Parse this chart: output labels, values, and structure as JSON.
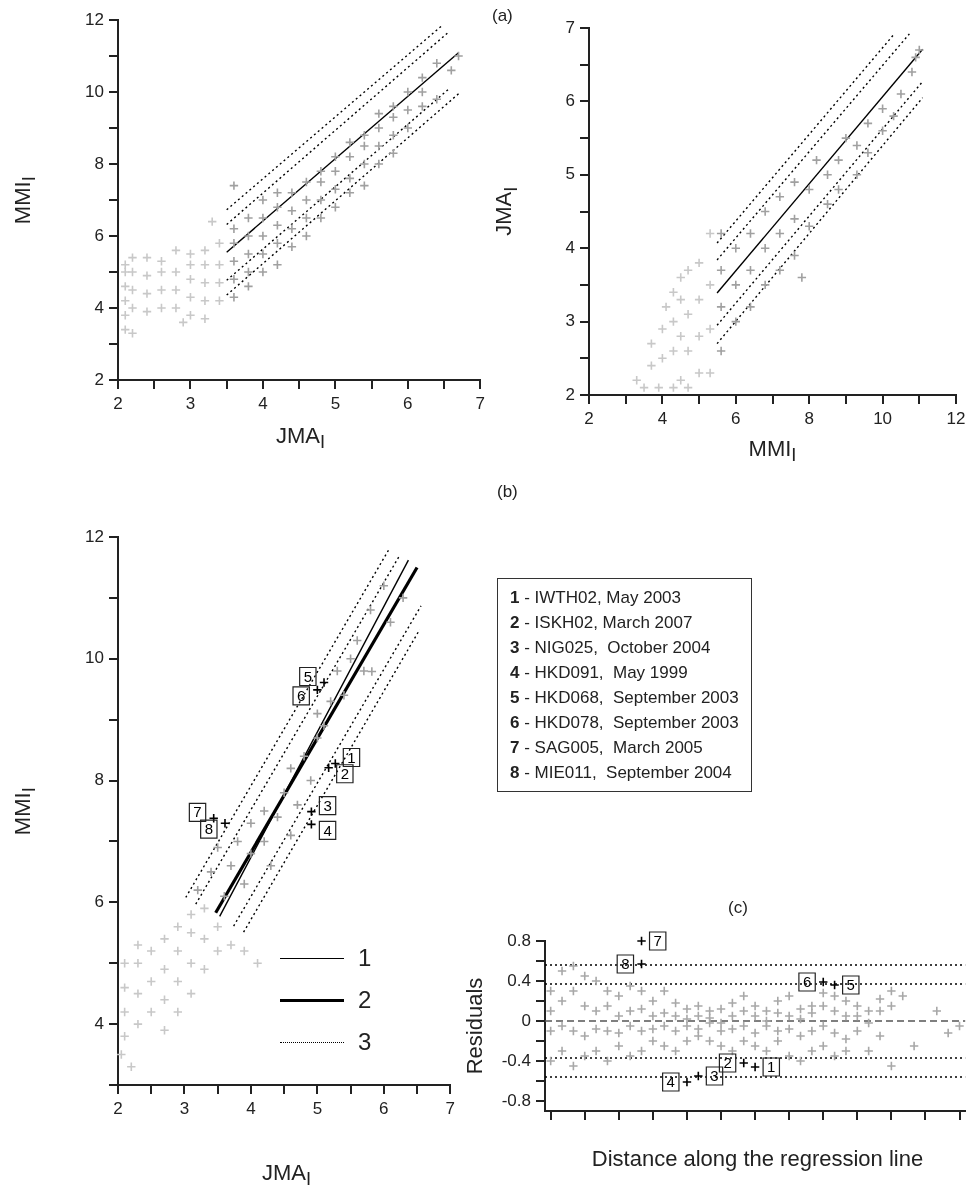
{
  "chart_data": [
    {
      "type": "scatter",
      "xlabel": "JMA$_{I}$",
      "ylabel": "MMI$_{I}$",
      "marker": "cross",
      "annotations": [
        "(a)"
      ],
      "xlim": [
        2,
        7
      ],
      "xticks": [
        2,
        {
          "value": 2.5,
          "label": null
        },
        3,
        {
          "value": 3.5,
          "label": null
        },
        4,
        {
          "value": 4.5,
          "label": null
        },
        5,
        {
          "value": 5.5,
          "label": null
        },
        6,
        {
          "value": 6.5,
          "label": null
        },
        7
      ],
      "ylim": [
        2,
        12
      ],
      "yticks": [
        2,
        {
          "value": 3,
          "label": null
        },
        4,
        {
          "value": 5,
          "label": null
        },
        6,
        {
          "value": 7,
          "label": null
        },
        8,
        {
          "value": 9,
          "label": null
        },
        10,
        {
          "value": 11,
          "label": null
        },
        12
      ],
      "series": [
        {
          "type": "scatter",
          "color": "#c8c8c8",
          "x": [
            2.1,
            2.1,
            2.1,
            2.1,
            2.1,
            2.1,
            2.2,
            2.2,
            2.2,
            2.2,
            2.2,
            2.4,
            2.4,
            2.4,
            2.4,
            2.6,
            2.6,
            2.6,
            2.6,
            2.8,
            2.8,
            2.8,
            2.8,
            2.9,
            3.0,
            3.0,
            3.0,
            3.0,
            3.0,
            3.2,
            3.2,
            3.2,
            3.2,
            3.2,
            3.4,
            3.4,
            3.4,
            3.4,
            3.3
          ],
          "values": [
            3.4,
            3.8,
            4.2,
            4.6,
            5.0,
            5.2,
            3.3,
            4.0,
            4.5,
            5.0,
            5.4,
            3.9,
            4.4,
            4.9,
            5.4,
            4.0,
            4.5,
            5.0,
            5.3,
            4.0,
            4.5,
            5.0,
            5.6,
            3.6,
            3.8,
            4.3,
            4.8,
            5.2,
            5.5,
            3.7,
            4.2,
            4.7,
            5.2,
            5.6,
            4.2,
            4.7,
            5.2,
            5.8,
            6.4
          ]
        },
        {
          "type": "scatter",
          "color": "#a0a0a0",
          "x": [
            3.6,
            3.6,
            3.6,
            3.6,
            3.6,
            3.6,
            3.8,
            3.8,
            3.8,
            3.8,
            3.8,
            4.0,
            4.0,
            4.0,
            4.0,
            4.0,
            4.2,
            4.2,
            4.2,
            4.2,
            4.2,
            4.4,
            4.4,
            4.4,
            4.4,
            4.6,
            4.6,
            4.6,
            4.6,
            4.8,
            4.8,
            4.8,
            4.8,
            5.0,
            5.0,
            5.0,
            5.0,
            5.2,
            5.2,
            5.2,
            5.2,
            5.4,
            5.4,
            5.4,
            5.4,
            5.6,
            5.6,
            5.6,
            5.6,
            5.8,
            5.8,
            5.8,
            5.8,
            6.0,
            6.0,
            6.0,
            6.2,
            6.2,
            6.2,
            6.4,
            6.4,
            6.6,
            6.7
          ],
          "values": [
            4.3,
            4.8,
            5.3,
            5.8,
            6.2,
            7.4,
            4.6,
            5.0,
            5.5,
            6.0,
            6.5,
            5.0,
            5.5,
            6.0,
            6.5,
            7.0,
            5.2,
            5.8,
            6.3,
            6.8,
            7.2,
            5.7,
            6.2,
            6.7,
            7.2,
            6.0,
            6.5,
            7.0,
            7.5,
            6.5,
            7.0,
            7.5,
            7.8,
            6.8,
            7.3,
            7.8,
            8.2,
            7.2,
            7.6,
            8.2,
            8.6,
            7.4,
            8.0,
            8.5,
            8.8,
            8.0,
            8.5,
            9.0,
            9.4,
            8.3,
            8.8,
            9.3,
            9.6,
            9.0,
            9.5,
            10.0,
            9.6,
            10.0,
            10.4,
            9.8,
            10.8,
            10.6,
            11.0
          ]
        },
        {
          "type": "line",
          "marker": "none",
          "color": "#000000",
          "x": [
            3.5,
            6.7
          ],
          "values": [
            5.55,
            11.09
          ]
        },
        {
          "type": "line",
          "marker": "none",
          "line_style": "dotted",
          "color": "#000000",
          "x": [
            3.5,
            6.48
          ],
          "values": [
            6.73,
            11.86
          ]
        },
        {
          "type": "line",
          "marker": "none",
          "line_style": "dotted",
          "color": "#000000",
          "x": [
            3.5,
            6.55
          ],
          "values": [
            6.32,
            11.64
          ]
        },
        {
          "type": "line",
          "marker": "none",
          "line_style": "dotted",
          "color": "#000000",
          "x": [
            3.5,
            6.57
          ],
          "values": [
            4.77,
            10.09
          ]
        },
        {
          "type": "line",
          "marker": "none",
          "line_style": "dotted",
          "color": "#000000",
          "x": [
            3.5,
            6.7
          ],
          "values": [
            4.36,
            9.95
          ]
        }
      ]
    },
    {
      "type": "scatter",
      "xlabel": "MMI$_{I}$",
      "ylabel": "JMA$_{I}$",
      "marker": "cross",
      "xlim": [
        2,
        12
      ],
      "xticks": [
        2,
        {
          "value": 3,
          "label": null
        },
        4,
        {
          "value": 5,
          "label": null
        },
        6,
        {
          "value": 7,
          "label": null
        },
        8,
        {
          "value": 9,
          "label": null
        },
        10,
        {
          "value": 11,
          "label": null
        },
        12
      ],
      "ylim": [
        2,
        7
      ],
      "yticks": [
        2,
        {
          "value": 2.5,
          "label": null
        },
        3,
        {
          "value": 3.5,
          "label": null
        },
        4,
        {
          "value": 4.5,
          "label": null
        },
        5,
        {
          "value": 5.5,
          "label": null
        },
        6,
        {
          "value": 6.5,
          "label": null
        },
        7
      ],
      "series": [
        {
          "type": "scatter",
          "color": "#c8c8c8",
          "x": [
            3.3,
            3.5,
            3.7,
            3.7,
            3.9,
            4.0,
            4.0,
            4.1,
            4.3,
            4.3,
            4.3,
            4.3,
            4.5,
            4.5,
            4.5,
            4.5,
            4.7,
            4.7,
            4.7,
            4.7,
            5.0,
            5.0,
            5.0,
            5.0,
            5.3,
            5.3,
            5.3,
            5.3
          ],
          "values": [
            2.2,
            2.1,
            2.4,
            2.7,
            2.1,
            2.5,
            2.9,
            3.2,
            2.1,
            2.6,
            3.0,
            3.4,
            2.2,
            2.8,
            3.3,
            3.6,
            2.1,
            2.6,
            3.1,
            3.7,
            2.3,
            2.8,
            3.3,
            3.8,
            2.3,
            2.9,
            3.5,
            4.2
          ]
        },
        {
          "type": "scatter",
          "color": "#a0a0a0",
          "x": [
            5.6,
            5.6,
            5.6,
            5.6,
            6.0,
            6.0,
            6.0,
            6.4,
            6.4,
            6.4,
            6.8,
            6.8,
            6.8,
            7.2,
            7.2,
            7.2,
            7.6,
            7.6,
            7.6,
            7.8,
            8.0,
            8.0,
            8.2,
            8.5,
            8.5,
            8.8,
            8.8,
            9.0,
            9.3,
            9.3,
            9.6,
            9.6,
            10.0,
            10.0,
            10.3,
            10.5,
            10.8,
            10.9,
            11.0
          ],
          "values": [
            2.6,
            3.2,
            3.7,
            4.2,
            3.0,
            3.5,
            4.0,
            3.2,
            3.7,
            4.2,
            3.5,
            4.0,
            4.5,
            3.7,
            4.2,
            4.7,
            3.9,
            4.4,
            4.9,
            3.6,
            4.3,
            4.8,
            5.2,
            4.6,
            5.0,
            4.8,
            5.2,
            5.5,
            5.0,
            5.4,
            5.3,
            5.7,
            5.6,
            5.9,
            5.8,
            6.1,
            6.4,
            6.6,
            6.7
          ]
        },
        {
          "type": "line",
          "marker": "none",
          "color": "#000000",
          "x": [
            5.49,
            11.09
          ],
          "values": [
            3.39,
            6.71
          ]
        },
        {
          "type": "line",
          "marker": "none",
          "line_style": "dotted",
          "color": "#000000",
          "x": [
            5.49,
            10.32
          ],
          "values": [
            4.07,
            6.92
          ]
        },
        {
          "type": "line",
          "marker": "none",
          "line_style": "dotted",
          "color": "#000000",
          "x": [
            5.49,
            10.73
          ],
          "values": [
            3.84,
            6.92
          ]
        },
        {
          "type": "line",
          "marker": "none",
          "line_style": "dotted",
          "color": "#000000",
          "x": [
            5.49,
            11.09
          ],
          "values": [
            2.95,
            6.27
          ]
        },
        {
          "type": "line",
          "marker": "none",
          "line_style": "dotted",
          "color": "#000000",
          "x": [
            5.49,
            11.09
          ],
          "values": [
            2.7,
            6.05
          ]
        }
      ]
    },
    {
      "type": "scatter",
      "xlabel": "JMA$_{I}$",
      "ylabel": "MMI$_{I}$",
      "marker": "cross",
      "legend": "bottom right",
      "annotations": [
        "(b)",
        "1 - IWTH02, May 2003",
        "2 - ISKH02, March 2007",
        "3 - NIG025,  October 2004",
        "4 - HKD091,  May 1999",
        "5 - HKD068,  September 2003",
        "6 - HKD078,  September 2003",
        "7 - SAG005,  March 2005",
        "8 - MIE011,  September 2004",
        {
          "text": "1",
          "x": 5.27,
          "y": 8.28
        },
        {
          "text": "2",
          "x": 5.17,
          "y": 8.21
        },
        {
          "text": "5",
          "x": 5.1,
          "y": 9.61
        },
        {
          "text": "6",
          "x": 5.0,
          "y": 9.49
        },
        {
          "text": "3",
          "x": 4.91,
          "y": 7.49
        },
        {
          "text": "4",
          "x": 4.91,
          "y": 7.28
        },
        {
          "text": "7",
          "x": 3.44,
          "y": 7.38
        },
        {
          "text": "8",
          "x": 3.61,
          "y": 7.3
        }
      ],
      "xlim": [
        2,
        7
      ],
      "xticks": [
        2,
        {
          "value": 2.5,
          "label": null
        },
        3,
        {
          "value": 3.5,
          "label": null
        },
        4,
        {
          "value": 4.5,
          "label": null
        },
        5,
        {
          "value": 5.5,
          "label": null
        },
        6,
        {
          "value": 6.5,
          "label": null
        },
        7
      ],
      "ylim": [
        3,
        12
      ],
      "yticks": [
        {
          "value": 3,
          "label": null
        },
        4,
        {
          "value": 5,
          "label": null
        },
        6,
        {
          "value": 7,
          "label": null
        },
        8,
        {
          "value": 9,
          "label": null
        },
        10,
        {
          "value": 11,
          "label": null
        },
        12
      ],
      "series": [
        {
          "type": "scatter",
          "color": "#c8c8c8",
          "x": [
            2.05,
            2.1,
            2.1,
            2.1,
            2.1,
            2.2,
            2.3,
            2.3,
            2.3,
            2.3,
            2.5,
            2.5,
            2.5,
            2.7,
            2.7,
            2.7,
            2.7,
            2.9,
            2.9,
            2.9,
            2.9,
            3.1,
            3.1,
            3.1,
            3.1,
            3.3,
            3.3,
            3.3,
            3.5,
            3.5,
            3.7,
            3.9,
            4.1
          ],
          "values": [
            3.5,
            3.8,
            4.2,
            4.6,
            5.0,
            3.3,
            4.0,
            4.5,
            5.0,
            5.3,
            4.2,
            4.7,
            5.2,
            3.9,
            4.4,
            4.9,
            5.4,
            4.2,
            4.7,
            5.2,
            5.6,
            4.5,
            5.0,
            5.5,
            5.8,
            4.9,
            5.4,
            5.9,
            5.2,
            5.6,
            5.3,
            5.2,
            5.0
          ]
        },
        {
          "type": "scatter",
          "color": "#a0a0a0",
          "x": [
            3.2,
            3.4,
            3.5,
            3.6,
            3.7,
            3.8,
            3.9,
            4.0,
            4.0,
            4.2,
            4.2,
            4.3,
            4.4,
            4.5,
            4.6,
            4.6,
            4.7,
            4.8,
            4.9,
            5.0,
            5.1,
            5.2,
            5.0,
            5.3,
            5.4,
            5.5,
            5.6,
            5.7,
            5.8,
            6.0,
            6.1,
            5.82,
            6.29
          ],
          "values": [
            6.2,
            6.5,
            6.9,
            6.1,
            6.6,
            7.0,
            6.3,
            6.8,
            7.3,
            7.0,
            7.5,
            6.6,
            7.4,
            7.8,
            7.1,
            8.2,
            7.6,
            8.4,
            8.0,
            8.7,
            8.9,
            9.3,
            9.1,
            9.8,
            9.4,
            10.0,
            10.3,
            9.8,
            10.8,
            11.2,
            10.6,
            9.79,
            11.0
          ]
        },
        {
          "type": "line",
          "name": "1",
          "marker": "none",
          "color": "#000000",
          "x": [
            3.53,
            6.37
          ],
          "values": [
            5.77,
            11.62
          ]
        },
        {
          "type": "line",
          "name": "2",
          "marker": "none",
          "color": "#000000",
          "x": [
            3.47,
            6.5
          ],
          "values": [
            5.83,
            11.5
          ]
        },
        {
          "type": "line",
          "name": "3",
          "marker": "none",
          "line_style": "dotted",
          "color": "#000000",
          "x": [
            3.02,
            6.09
          ],
          "values": [
            6.08,
            11.82
          ]
        },
        {
          "type": "line",
          "marker": "none",
          "line_style": "dotted",
          "color": "#000000",
          "x": [
            3.17,
            6.24
          ],
          "values": [
            5.97,
            11.7
          ]
        },
        {
          "type": "line",
          "marker": "none",
          "line_style": "dotted",
          "color": "#000000",
          "x": [
            3.74,
            6.56
          ],
          "values": [
            5.61,
            10.87
          ]
        },
        {
          "type": "line",
          "marker": "none",
          "line_style": "dotted",
          "color": "#000000",
          "x": [
            3.89,
            6.54
          ],
          "values": [
            5.51,
            10.48
          ]
        },
        {
          "type": "scatter",
          "color": "#000000",
          "x": [
            5.27,
            4.91
          ],
          "values": [
            8.28,
            7.49
          ]
        },
        {
          "type": "scatter",
          "color": "#000000",
          "x": [
            5.17,
            4.91
          ],
          "values": [
            8.21,
            7.28
          ]
        },
        {
          "type": "scatter",
          "color": "#000000",
          "x": [
            5.1,
            3.44
          ],
          "values": [
            9.61,
            7.38
          ]
        },
        {
          "type": "scatter",
          "color": "#000000",
          "x": [
            5.0,
            3.61
          ],
          "values": [
            9.49,
            7.3
          ]
        }
      ]
    },
    {
      "type": "scatter",
      "xlabel": "Distance along the regression line",
      "ylabel": "Residuals",
      "marker": "cross",
      "tick_labels": "y",
      "annotations": [
        "(c)",
        {
          "text": "7",
          "y": 0.8
        },
        {
          "text": "3",
          "y": -0.55
        },
        {
          "text": "6",
          "y": 0.39
        },
        {
          "text": "8",
          "y": 0.57
        },
        {
          "text": "5",
          "y": 0.36
        },
        {
          "text": "1",
          "y": -0.46
        },
        {
          "text": "2",
          "y": -0.42
        },
        {
          "text": "4",
          "y": -0.61
        }
      ],
      "categories": [
        null,
        null,
        null,
        null,
        null,
        null,
        null,
        null,
        null,
        null,
        null,
        null,
        null,
        null,
        null,
        null,
        null,
        null,
        null,
        null,
        null,
        null,
        null,
        null,
        null,
        null,
        null,
        null,
        null,
        null,
        null,
        null,
        null,
        null,
        null,
        null,
        null
      ],
      "ylim": [
        -0.9,
        0.8
      ],
      "yticks": [
        {
          "value": -0.8,
          "label": "-0.8"
        },
        {
          "value": -0.6,
          "label": null
        },
        {
          "value": -0.4,
          "label": "-0.4"
        },
        {
          "value": -0.2,
          "label": null
        },
        0,
        {
          "value": 0.2,
          "label": null
        },
        0.4,
        {
          "value": 0.6,
          "label": null
        },
        0.8
      ],
      "ref_lines": [
        {
          "axis": "y",
          "value": 0.56,
          "line_style": "dotted",
          "color": "#000000"
        },
        {
          "axis": "y",
          "value": 0.37,
          "line_style": "dotted",
          "color": "#000000"
        },
        {
          "axis": "y",
          "value": 0,
          "line_style": "dashed",
          "color": "#555555"
        },
        {
          "axis": "y",
          "value": -0.37,
          "line_style": "dotted",
          "color": "#000000"
        },
        {
          "axis": "y",
          "value": -0.56,
          "line_style": "dotted",
          "color": "#000000"
        }
      ],
      "series": [
        {
          "type": "scatter",
          "color": "#a8a8a8",
          "values": [
            0.3,
            0.5,
            0.55,
            0.45,
            0.4,
            0.3,
            0.25,
            0.35,
            0.3,
            0.2,
            0.3,
            0.18,
            0.12,
            0.15,
            0.1,
            0.12,
            0.18,
            0.25,
            0.15,
            0.1,
            0.2,
            0.25,
            0.12,
            0.15,
            0.28,
            0.25,
            0.2,
            0.15,
            0.1,
            0.22,
            0.3,
            0.25,
            null,
            null,
            0.1,
            null,
            -0.05
          ]
        },
        {
          "type": "scatter",
          "color": "#a8a8a8",
          "values": [
            0.1,
            0.2,
            0.3,
            0.15,
            0.1,
            0.15,
            0.05,
            0.1,
            0.12,
            0.05,
            0.08,
            0.05,
            0.02,
            0.05,
            0.03,
            -0.02,
            0.05,
            0.1,
            0.05,
            0.0,
            0.08,
            0.05,
            0.02,
            0.08,
            0.15,
            0.1,
            0.05,
            0.05,
            -0.02,
            0.1,
            0.15,
            null,
            null,
            null,
            null,
            -0.12,
            null
          ]
        },
        {
          "type": "scatter",
          "color": "#a8a8a8",
          "values": [
            -0.1,
            -0.05,
            -0.1,
            -0.15,
            -0.08,
            -0.1,
            -0.12,
            -0.05,
            -0.1,
            -0.08,
            -0.05,
            -0.1,
            -0.05,
            -0.08,
            -0.02,
            -0.1,
            -0.08,
            -0.05,
            -0.12,
            -0.05,
            -0.1,
            -0.08,
            -0.15,
            -0.1,
            -0.05,
            -0.12,
            -0.18,
            -0.1,
            null,
            -0.15,
            null,
            null,
            -0.25,
            null,
            null,
            null,
            null
          ]
        },
        {
          "type": "scatter",
          "color": "#a8a8a8",
          "values": [
            -0.4,
            -0.3,
            -0.45,
            -0.35,
            -0.3,
            -0.4,
            -0.25,
            -0.35,
            -0.3,
            -0.2,
            -0.25,
            -0.3,
            -0.2,
            -0.15,
            -0.2,
            -0.25,
            -0.3,
            -0.2,
            -0.25,
            -0.3,
            -0.2,
            -0.35,
            -0.4,
            -0.3,
            -0.25,
            -0.35,
            -0.3,
            null,
            -0.3,
            null,
            -0.45,
            null,
            null,
            null,
            null,
            null,
            null
          ]
        },
        {
          "type": "scatter",
          "color": "#000000",
          "values": [
            null,
            null,
            null,
            null,
            null,
            null,
            null,
            null,
            0.8,
            null,
            null,
            null,
            null,
            null,
            null,
            null,
            null,
            null,
            null,
            null,
            null,
            null,
            null,
            null,
            null,
            0.36,
            null,
            null,
            null,
            null,
            null,
            null,
            null,
            null,
            null,
            null,
            null
          ]
        },
        {
          "type": "scatter",
          "color": "#000000",
          "values": [
            null,
            null,
            null,
            null,
            null,
            null,
            null,
            null,
            null,
            null,
            null,
            null,
            null,
            -0.55,
            null,
            null,
            null,
            null,
            -0.46,
            null,
            null,
            null,
            null,
            null,
            null,
            null,
            null,
            null,
            null,
            null,
            null,
            null,
            null,
            null,
            null,
            null,
            null
          ]
        },
        {
          "type": "scatter",
          "color": "#000000",
          "values": [
            null,
            null,
            null,
            null,
            null,
            null,
            null,
            null,
            null,
            null,
            null,
            null,
            null,
            null,
            null,
            null,
            null,
            -0.42,
            null,
            null,
            null,
            null,
            null,
            null,
            0.39,
            null,
            null,
            null,
            null,
            null,
            null,
            null,
            null,
            null,
            null,
            null,
            null
          ]
        },
        {
          "type": "scatter",
          "color": "#000000",
          "values": [
            null,
            null,
            null,
            null,
            null,
            null,
            null,
            null,
            0.57,
            null,
            null,
            null,
            -0.61,
            null,
            null,
            null,
            null,
            null,
            null,
            null,
            null,
            null,
            null,
            null,
            null,
            null,
            null,
            null,
            null,
            null,
            null,
            null,
            null,
            null,
            null,
            null,
            null
          ]
        }
      ]
    }
  ]
}
